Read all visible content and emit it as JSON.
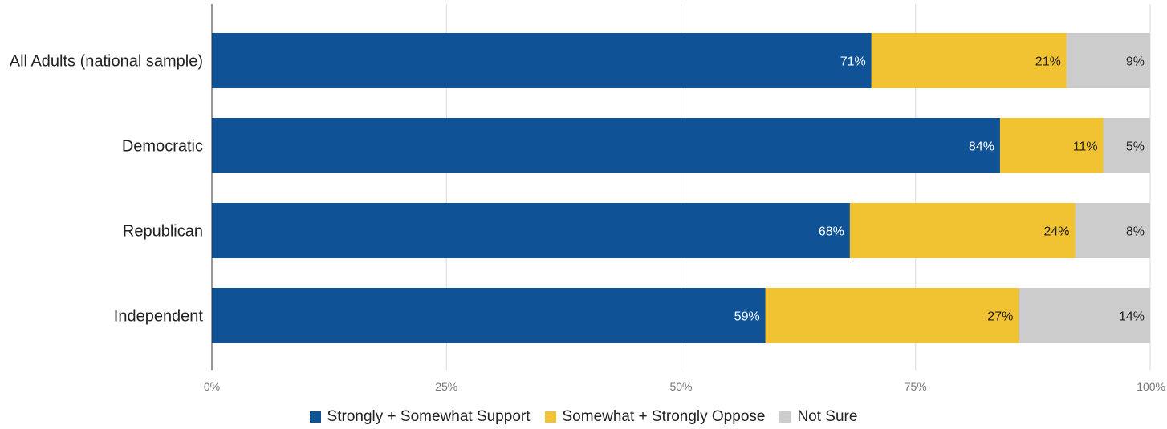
{
  "chart_data": {
    "type": "bar",
    "orientation": "horizontal",
    "stacked": true,
    "categories": [
      "All Adults (national sample)",
      "Democratic",
      "Republican",
      "Independent"
    ],
    "series": [
      {
        "name": "Strongly + Somewhat Support",
        "color": "#0f5396",
        "label_color": "#ffffff",
        "values": [
          71,
          84,
          68,
          59
        ],
        "labels": [
          "71%",
          "84%",
          "68%",
          "59%"
        ]
      },
      {
        "name": "Somewhat + Strongly Oppose",
        "color": "#f1c232",
        "label_color": "#222222",
        "values": [
          21,
          11,
          24,
          27
        ],
        "labels": [
          "21%",
          "11%",
          "24%",
          "27%"
        ]
      },
      {
        "name": "Not Sure",
        "color": "#cccccc",
        "label_color": "#222222",
        "values": [
          9,
          5,
          8,
          14
        ],
        "labels": [
          "9%",
          "5%",
          "8%",
          "14%"
        ]
      }
    ],
    "x_ticks": [
      0,
      25,
      50,
      75,
      100
    ],
    "x_tick_labels": [
      "0%",
      "25%",
      "50%",
      "75%",
      "100%"
    ],
    "xlim": [
      0,
      100
    ],
    "grid": true,
    "legend_position": "bottom-center"
  }
}
